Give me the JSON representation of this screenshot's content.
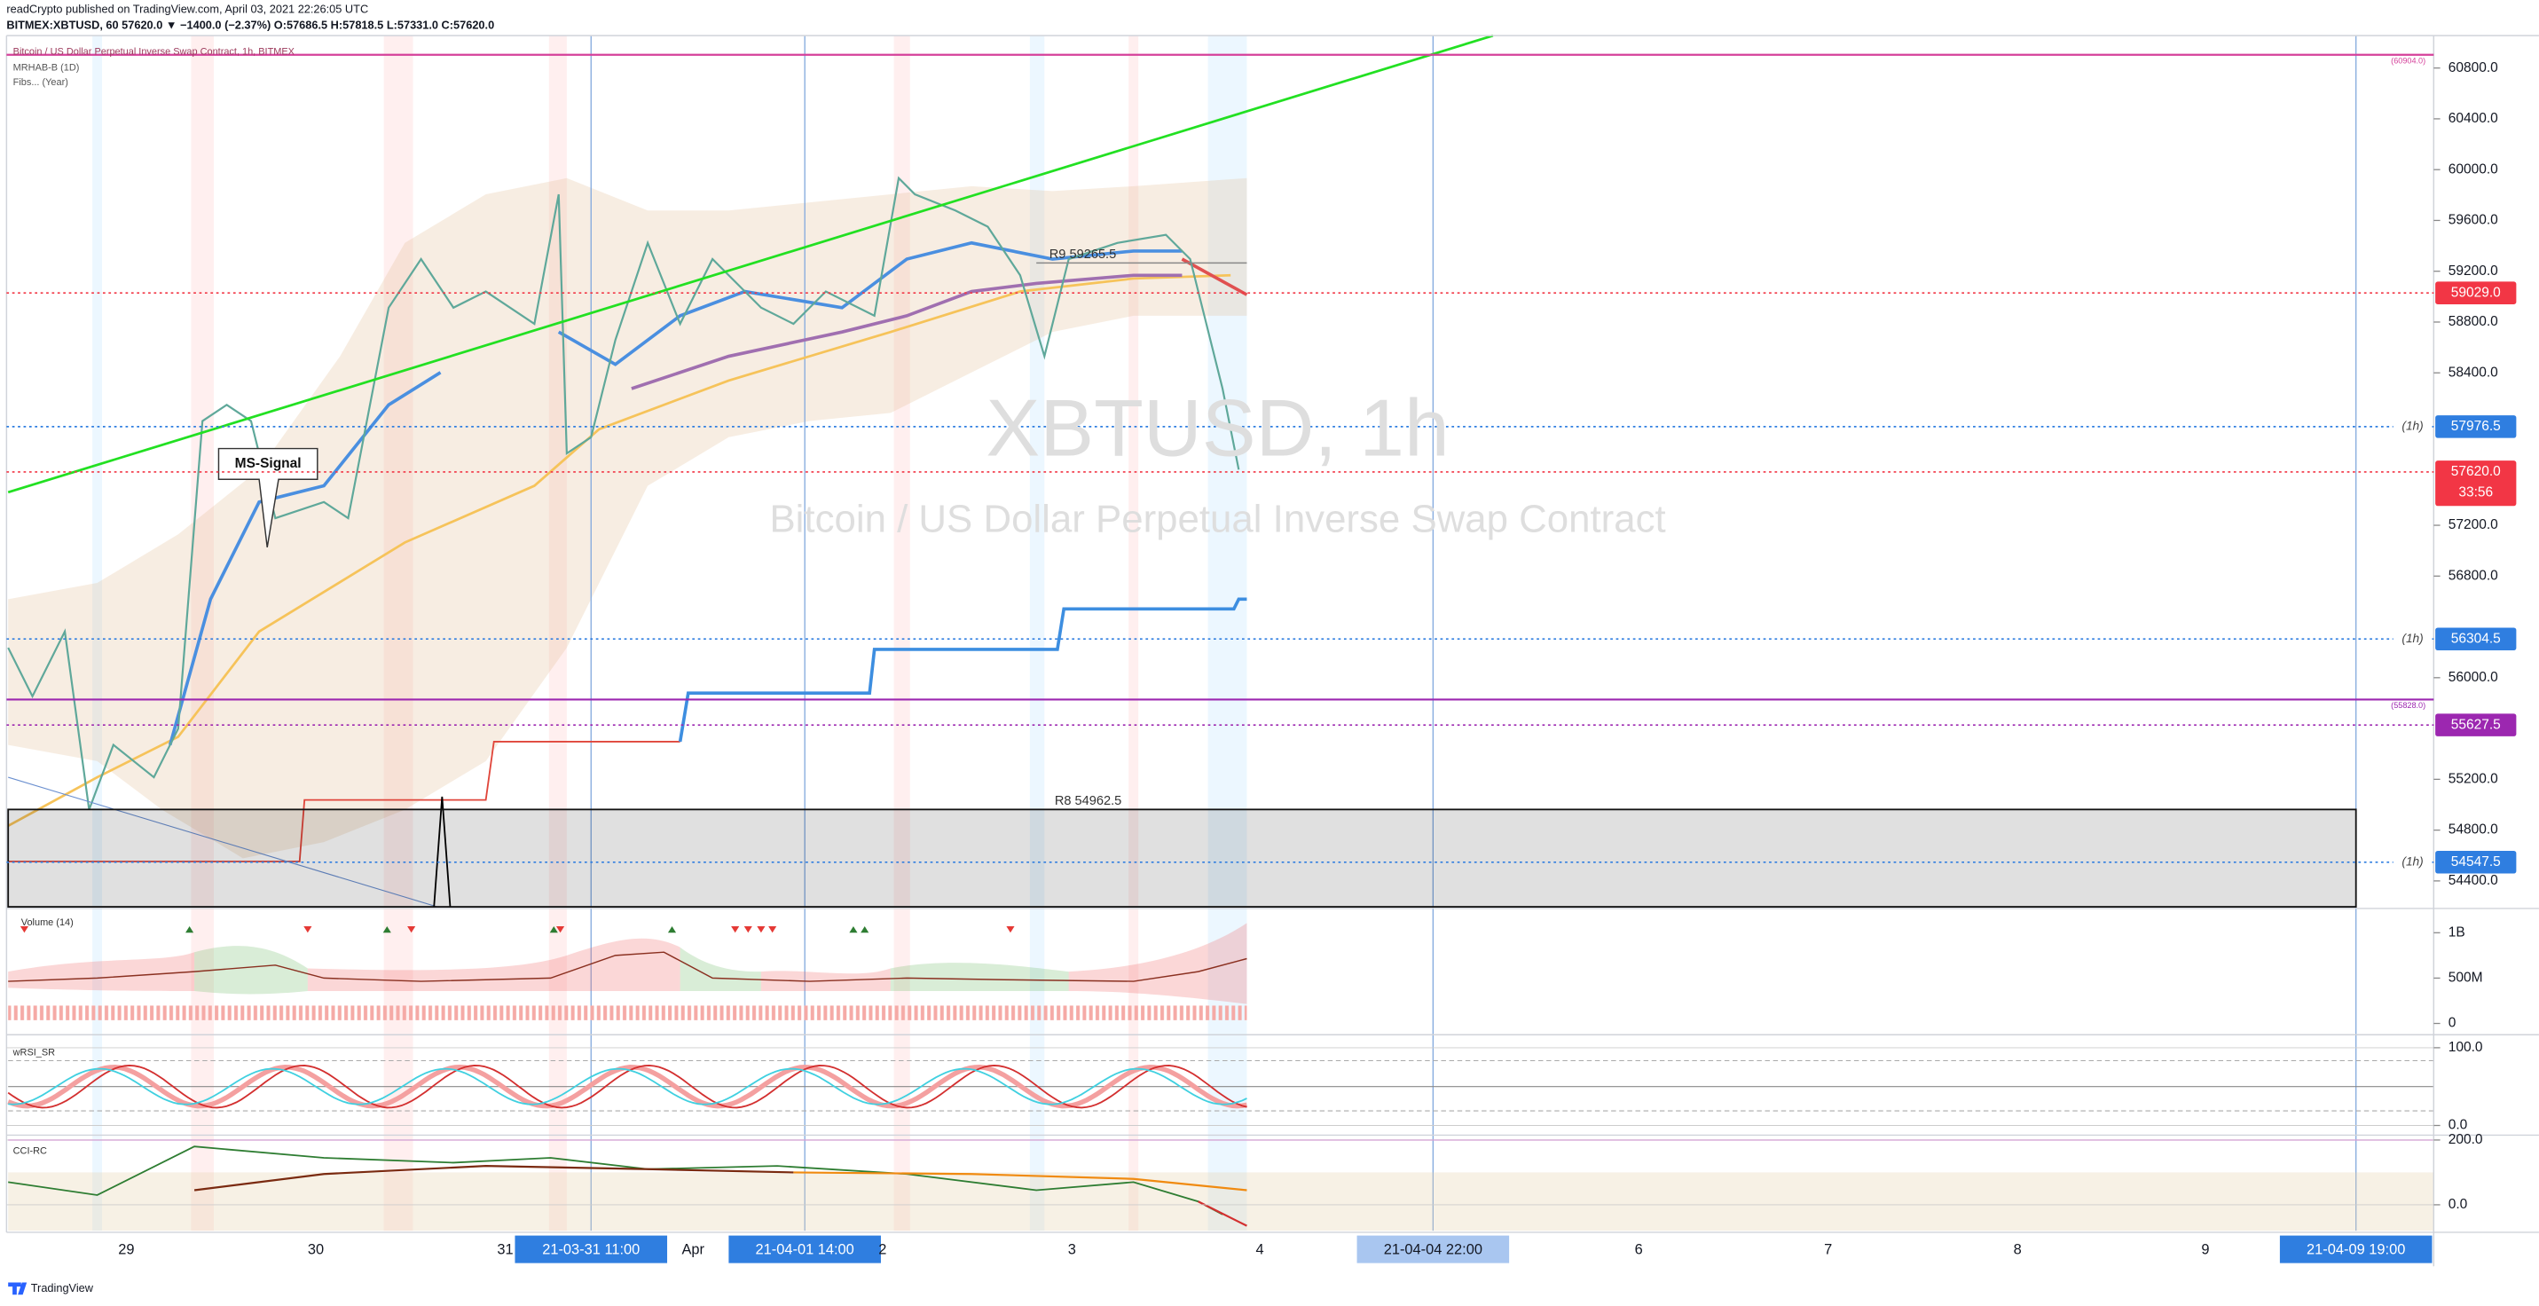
{
  "header": {
    "line1": "readCrypto published on TradingView.com, April 03, 2021 22:26:05 UTC",
    "line2": "BITMEX:XBTUSD, 60  57620.0 ▼ −1400.0 (−2.37%) O:57686.5 H:57818.5 L:57331.0 C:57620.0"
  },
  "main_pane": {
    "title": "Bitcoin / US Dollar Perpetual Inverse Swap Contract, 1h, BITMEX",
    "indicators": [
      "MRHAB-B (1D)",
      "Fibs... (Year)"
    ],
    "watermark": "XBTUSD, 1h",
    "watermark_subtitle": "Bitcoin / US Dollar Perpetual Inverse Swap Contract",
    "annotation": "MS-Signal",
    "ylim": [
      54196,
      61055
    ],
    "yticks": [
      {
        "value": 60800,
        "label": "60800.0"
      },
      {
        "value": 60400,
        "label": "60400.0"
      },
      {
        "value": 60000,
        "label": "60000.0"
      },
      {
        "value": 59600,
        "label": "59600.0"
      },
      {
        "value": 59200,
        "label": "59200.0"
      },
      {
        "value": 58800,
        "label": "58800.0"
      },
      {
        "value": 58400,
        "label": "58400.0"
      },
      {
        "value": 57200,
        "label": "57200.0"
      },
      {
        "value": 56800,
        "label": "56800.0"
      },
      {
        "value": 56000,
        "label": "56000.0"
      },
      {
        "value": 55200,
        "label": "55200.0"
      },
      {
        "value": 54800,
        "label": "54800.0"
      },
      {
        "value": 54400,
        "label": "54400.0"
      }
    ],
    "price_labels": [
      {
        "value": 59029.0,
        "label": "59029.0",
        "color": "#f23645"
      },
      {
        "value": 57976.5,
        "label": "57976.5",
        "color": "#2f7ee0",
        "tag": "(1h)"
      },
      {
        "value": 57620.0,
        "label": "57620.0",
        "color": "#f23645",
        "countdown": "33:56"
      },
      {
        "value": 56304.5,
        "label": "56304.5",
        "color": "#2f7ee0",
        "tag": "(1h)"
      },
      {
        "value": 55627.5,
        "label": "55627.5",
        "color": "#9c27b0"
      },
      {
        "value": 54547.5,
        "label": "54547.5",
        "color": "#2f7ee0",
        "tag": "(1h)"
      }
    ],
    "fib_lines": [
      {
        "value": 60904.0,
        "label": "(60904.0)",
        "color": "#d5409a"
      },
      {
        "value": 55828.0,
        "label": "(55828.0)",
        "color": "#9c27b0"
      }
    ],
    "pivots": [
      {
        "value": 59265.5,
        "label": "R9 59265.5"
      },
      {
        "value": 54962.5,
        "label": "R8 54962.5"
      }
    ],
    "x_labels": [
      "29",
      "30",
      "31",
      {
        "label": "21-03-31  11:00",
        "color": "#2f7ee0"
      },
      "Apr",
      {
        "label": "21-04-01  14:00",
        "color": "#2f7ee0"
      },
      "2",
      "3",
      "4",
      {
        "label": "21-04-04  22:00",
        "color": "#a9c6f0"
      },
      "6",
      "7",
      "8",
      "9",
      {
        "label": "21-04-09  19:00",
        "color": "#2f7ee0"
      }
    ]
  },
  "volume_pane": {
    "title": "Volume (14)",
    "ylim": [
      -107000000,
      1250000000
    ],
    "yticks": [
      {
        "value": 1000000000,
        "label": "1B"
      },
      {
        "value": 500000000,
        "label": "500M"
      },
      0
    ]
  },
  "rsi_pane": {
    "title": "wRSI_SR",
    "ylim": [
      -10.4,
      114.6
    ],
    "yticks": [
      {
        "value": 100,
        "label": "100.0"
      },
      {
        "value": 0,
        "label": "0.0"
      }
    ]
  },
  "cci_pane": {
    "title": "CCI-RC",
    "ylim": [
      -80,
      210
    ],
    "yticks": [
      {
        "value": 200,
        "label": "200.0"
      },
      {
        "value": 0,
        "label": "0.0"
      }
    ]
  },
  "footer": "TradingView"
}
